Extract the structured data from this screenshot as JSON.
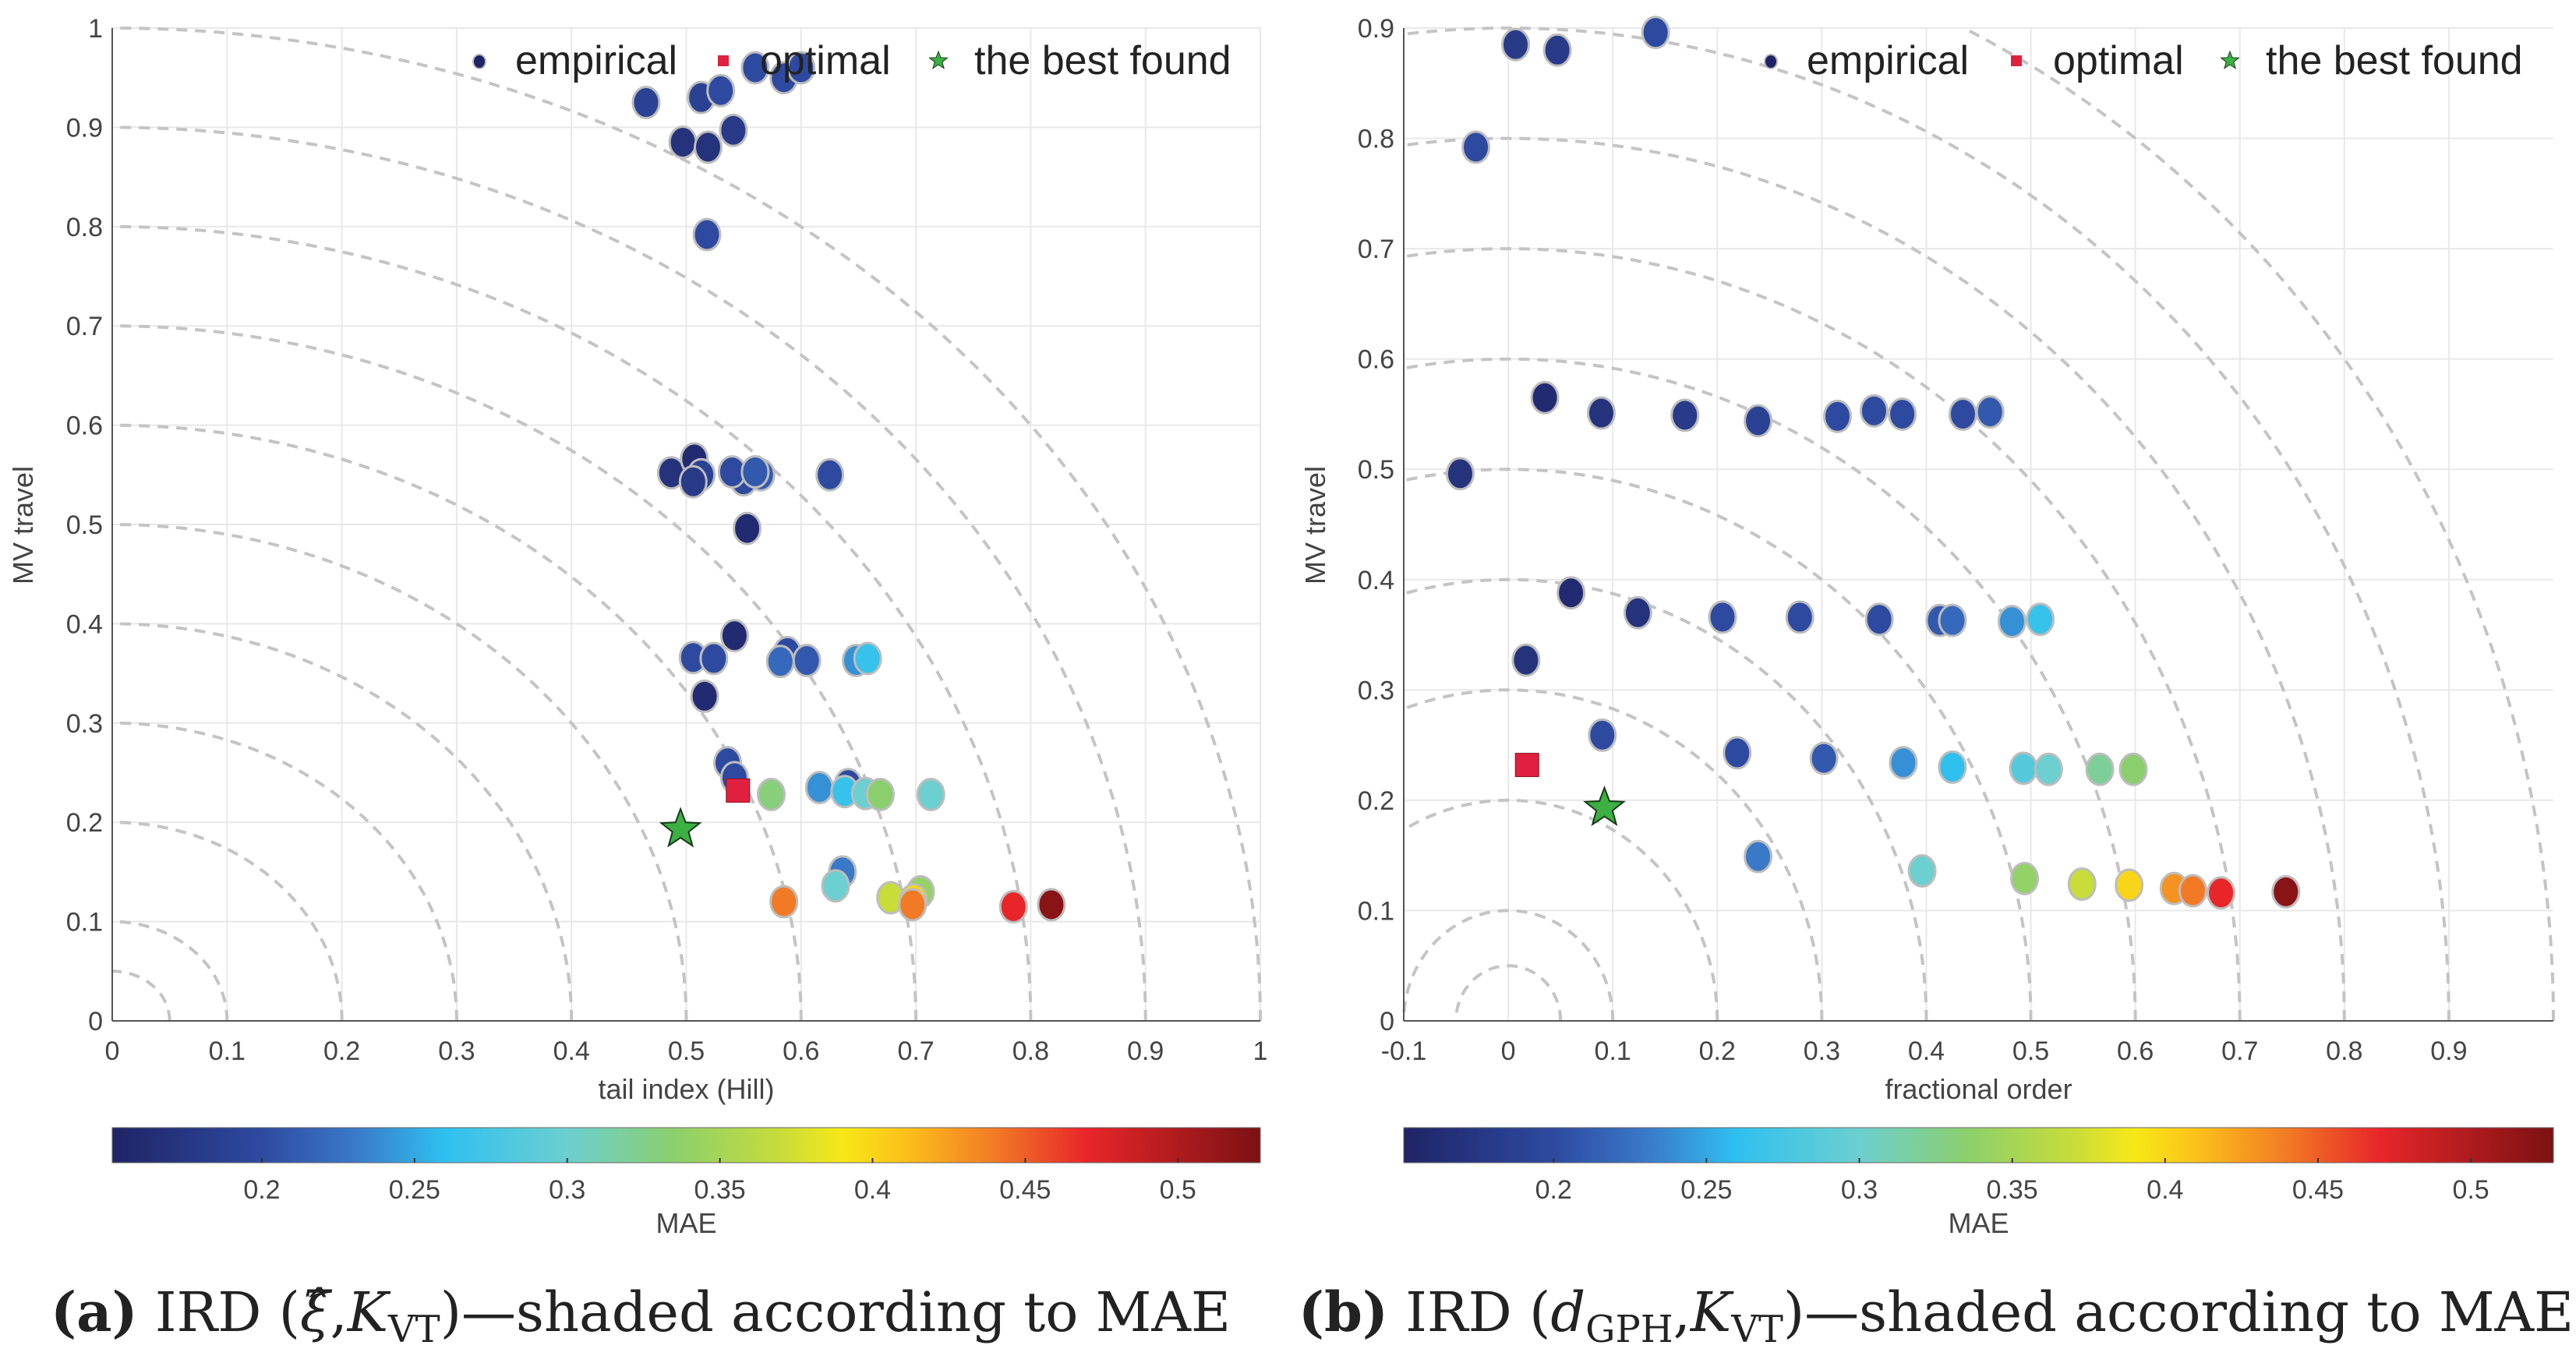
{
  "colormap": {
    "range": [
      0.151,
      0.527
    ],
    "stops": [
      [
        0.151,
        "#1f2466"
      ],
      [
        0.2,
        "#2e4aa0"
      ],
      [
        0.23,
        "#3a78c8"
      ],
      [
        0.26,
        "#2fc0f0"
      ],
      [
        0.3,
        "#6ccfd0"
      ],
      [
        0.335,
        "#8bcf6d"
      ],
      [
        0.37,
        "#c8dc3a"
      ],
      [
        0.39,
        "#f7e817"
      ],
      [
        0.41,
        "#fbc21a"
      ],
      [
        0.44,
        "#f27a25"
      ],
      [
        0.47,
        "#e8262a"
      ],
      [
        0.527,
        "#7b1113"
      ]
    ]
  },
  "chart_data": [
    {
      "type": "scatter",
      "id": "a",
      "xlabel": "tail index (Hill)",
      "ylabel": "MV travel",
      "xlim": [
        0,
        1
      ],
      "ylim": [
        0,
        1
      ],
      "xticks": [
        "0",
        "0.1",
        "0.2",
        "0.3",
        "0.4",
        "0.5",
        "0.6",
        "0.7",
        "0.8",
        "0.9",
        "1"
      ],
      "xtick_values": [
        0,
        0.1,
        0.2,
        0.3,
        0.4,
        0.5,
        0.6,
        0.7,
        0.8,
        0.9,
        1
      ],
      "yticks": [
        "0",
        "0.1",
        "0.2",
        "0.3",
        "0.4",
        "0.5",
        "0.6",
        "0.7",
        "0.8",
        "0.9",
        "1"
      ],
      "ytick_values": [
        0,
        0.1,
        0.2,
        0.3,
        0.4,
        0.5,
        0.6,
        0.7,
        0.8,
        0.9,
        1
      ],
      "arc_radii": [
        0.05,
        0.1,
        0.2,
        0.3,
        0.4,
        0.5,
        0.6,
        0.7,
        0.8,
        0.9,
        1.0
      ],
      "grid": true,
      "legend": {
        "placement": "top-right",
        "entries": [
          "empirical",
          "optimal",
          "the best found"
        ]
      },
      "empirical": [
        [
          0.465,
          0.925,
          0.19
        ],
        [
          0.513,
          0.93,
          0.19
        ],
        [
          0.53,
          0.937,
          0.2
        ],
        [
          0.56,
          0.96,
          0.2
        ],
        [
          0.585,
          0.95,
          0.2
        ],
        [
          0.6,
          0.96,
          0.2
        ],
        [
          0.497,
          0.885,
          0.17
        ],
        [
          0.519,
          0.88,
          0.17
        ],
        [
          0.541,
          0.897,
          0.18
        ],
        [
          0.518,
          0.792,
          0.2
        ],
        [
          0.487,
          0.552,
          0.17
        ],
        [
          0.507,
          0.566,
          0.16
        ],
        [
          0.513,
          0.55,
          0.19
        ],
        [
          0.506,
          0.543,
          0.18
        ],
        [
          0.55,
          0.545,
          0.2
        ],
        [
          0.54,
          0.553,
          0.2
        ],
        [
          0.565,
          0.55,
          0.21
        ],
        [
          0.56,
          0.553,
          0.21
        ],
        [
          0.625,
          0.55,
          0.2
        ],
        [
          0.553,
          0.496,
          0.16
        ],
        [
          0.542,
          0.388,
          0.16
        ],
        [
          0.506,
          0.366,
          0.2
        ],
        [
          0.524,
          0.365,
          0.2
        ],
        [
          0.588,
          0.371,
          0.2
        ],
        [
          0.605,
          0.363,
          0.21
        ],
        [
          0.582,
          0.362,
          0.22
        ],
        [
          0.648,
          0.363,
          0.24
        ],
        [
          0.658,
          0.365,
          0.265
        ],
        [
          0.516,
          0.327,
          0.16
        ],
        [
          0.536,
          0.26,
          0.2
        ],
        [
          0.542,
          0.245,
          0.2
        ],
        [
          0.574,
          0.228,
          0.33
        ],
        [
          0.616,
          0.235,
          0.24
        ],
        [
          0.641,
          0.238,
          0.2
        ],
        [
          0.638,
          0.231,
          0.265
        ],
        [
          0.656,
          0.229,
          0.3
        ],
        [
          0.669,
          0.228,
          0.335
        ],
        [
          0.713,
          0.228,
          0.3
        ],
        [
          0.636,
          0.15,
          0.23
        ],
        [
          0.63,
          0.136,
          0.3
        ],
        [
          0.585,
          0.12,
          0.44
        ],
        [
          0.678,
          0.124,
          0.37
        ],
        [
          0.704,
          0.13,
          0.34
        ],
        [
          0.698,
          0.122,
          0.4
        ],
        [
          0.697,
          0.117,
          0.44
        ],
        [
          0.785,
          0.115,
          0.47
        ],
        [
          0.818,
          0.117,
          0.52
        ]
      ],
      "optimal": [
        0.545,
        0.232
      ],
      "best_found": [
        0.495,
        0.193
      ],
      "colorbar": {
        "label": "MAE",
        "ticks": [
          "0.2",
          "0.25",
          "0.3",
          "0.35",
          "0.4",
          "0.45",
          "0.5"
        ],
        "tick_values": [
          0.2,
          0.25,
          0.3,
          0.35,
          0.4,
          0.45,
          0.5
        ]
      }
    },
    {
      "type": "scatter",
      "id": "b",
      "xlabel": "fractional order",
      "ylabel": "MV travel",
      "xlim": [
        -0.1,
        1.0
      ],
      "ylim": [
        0,
        0.9
      ],
      "xticks": [
        "-0.1",
        "0",
        "0.1",
        "0.2",
        "0.3",
        "0.4",
        "0.5",
        "0.6",
        "0.7",
        "0.8",
        "0.9"
      ],
      "xtick_values": [
        -0.1,
        0,
        0.1,
        0.2,
        0.3,
        0.4,
        0.5,
        0.6,
        0.7,
        0.8,
        0.9
      ],
      "yticks": [
        "0",
        "0.1",
        "0.2",
        "0.3",
        "0.4",
        "0.5",
        "0.6",
        "0.7",
        "0.8",
        "0.9"
      ],
      "ytick_values": [
        0,
        0.1,
        0.2,
        0.3,
        0.4,
        0.5,
        0.6,
        0.7,
        0.8,
        0.9
      ],
      "arc_radii": [
        0.05,
        0.1,
        0.2,
        0.3,
        0.4,
        0.5,
        0.6,
        0.7,
        0.8,
        0.9,
        1.0
      ],
      "grid": true,
      "legend": {
        "placement": "top-right",
        "entries": [
          "empirical",
          "optimal",
          "the best found"
        ]
      },
      "empirical": [
        [
          0.007,
          0.885,
          0.18
        ],
        [
          0.047,
          0.88,
          0.18
        ],
        [
          0.141,
          0.896,
          0.2
        ],
        [
          -0.031,
          0.792,
          0.2
        ],
        [
          0.035,
          0.565,
          0.16
        ],
        [
          0.089,
          0.551,
          0.17
        ],
        [
          0.169,
          0.549,
          0.18
        ],
        [
          0.239,
          0.544,
          0.19
        ],
        [
          0.315,
          0.548,
          0.2
        ],
        [
          0.35,
          0.553,
          0.2
        ],
        [
          0.377,
          0.55,
          0.2
        ],
        [
          0.435,
          0.55,
          0.2
        ],
        [
          0.461,
          0.552,
          0.21
        ],
        [
          -0.046,
          0.496,
          0.17
        ],
        [
          0.06,
          0.388,
          0.16
        ],
        [
          0.124,
          0.37,
          0.17
        ],
        [
          0.205,
          0.366,
          0.2
        ],
        [
          0.279,
          0.366,
          0.2
        ],
        [
          0.355,
          0.364,
          0.2
        ],
        [
          0.413,
          0.363,
          0.21
        ],
        [
          0.425,
          0.363,
          0.22
        ],
        [
          0.482,
          0.362,
          0.24
        ],
        [
          0.509,
          0.364,
          0.265
        ],
        [
          0.017,
          0.327,
          0.17
        ],
        [
          0.09,
          0.259,
          0.2
        ],
        [
          0.219,
          0.243,
          0.2
        ],
        [
          0.302,
          0.238,
          0.21
        ],
        [
          0.378,
          0.234,
          0.24
        ],
        [
          0.425,
          0.23,
          0.26
        ],
        [
          0.493,
          0.229,
          0.285
        ],
        [
          0.517,
          0.228,
          0.3
        ],
        [
          0.566,
          0.228,
          0.32
        ],
        [
          0.598,
          0.228,
          0.335
        ],
        [
          0.239,
          0.149,
          0.23
        ],
        [
          0.396,
          0.136,
          0.3
        ],
        [
          0.494,
          0.129,
          0.34
        ],
        [
          0.549,
          0.124,
          0.37
        ],
        [
          0.594,
          0.123,
          0.4
        ],
        [
          0.637,
          0.12,
          0.43
        ],
        [
          0.655,
          0.118,
          0.44
        ],
        [
          0.682,
          0.116,
          0.47
        ],
        [
          0.744,
          0.117,
          0.52
        ]
      ],
      "optimal": [
        0.018,
        0.232
      ],
      "best_found": [
        0.092,
        0.193
      ],
      "colorbar": {
        "label": "MAE",
        "ticks": [
          "0.2",
          "0.25",
          "0.3",
          "0.35",
          "0.4",
          "0.45",
          "0.5"
        ],
        "tick_values": [
          0.2,
          0.25,
          0.3,
          0.35,
          0.4,
          0.45,
          0.5
        ]
      }
    }
  ],
  "captions": [
    {
      "label": "(a)",
      "pre": " IRD (",
      "sym": "ξ̂",
      "sep": ",",
      "k": "K",
      "ksub": "VT",
      "post": ")—shaded according to MAE"
    },
    {
      "label": "(b)",
      "pre": " IRD (",
      "sym": "d",
      "symsub": "GPH",
      "sep": ",",
      "k": "K",
      "ksub": "VT",
      "post": ")—shaded according to MAE"
    }
  ]
}
